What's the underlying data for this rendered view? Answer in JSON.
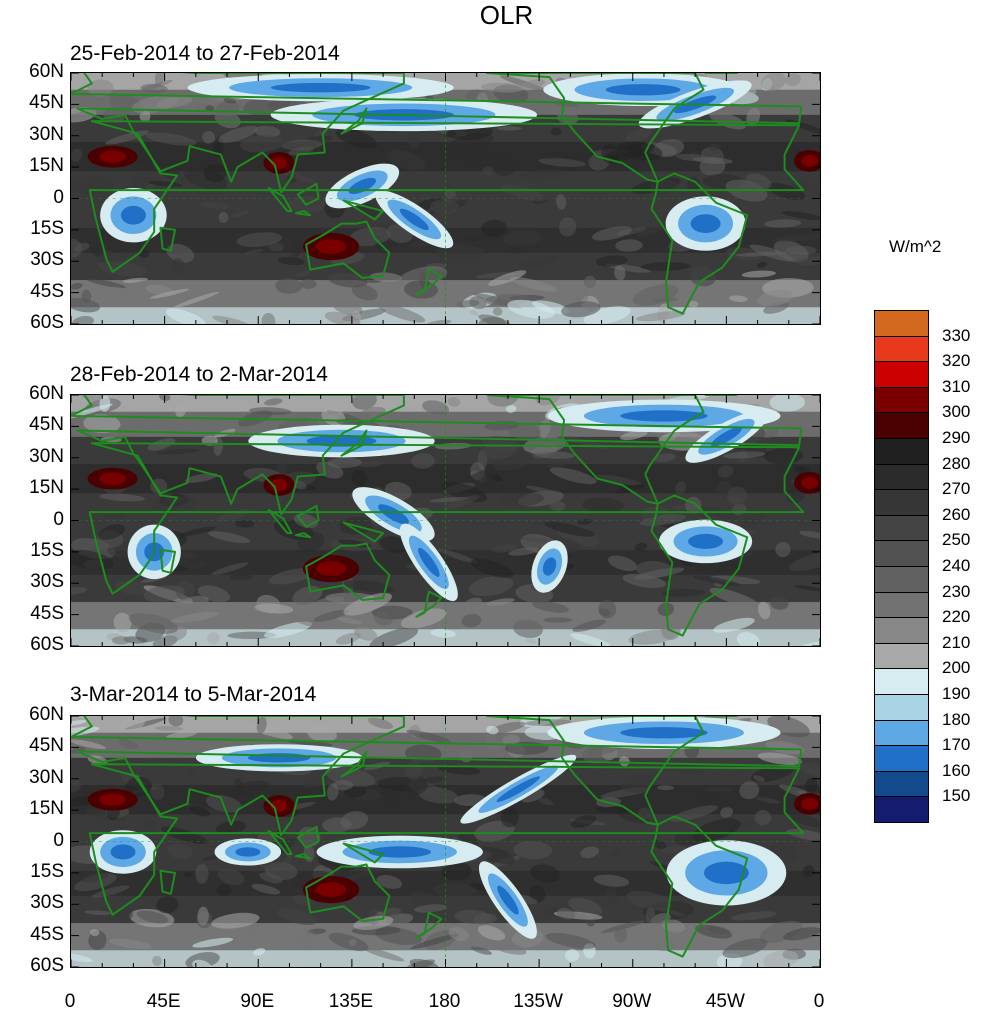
{
  "title": "OLR",
  "panels": [
    {
      "title": "25-Feb-2014 to 27-Feb-2014"
    },
    {
      "title": "28-Feb-2014 to 2-Mar-2014"
    },
    {
      "title": "3-Mar-2014 to 5-Mar-2014"
    }
  ],
  "lat_labels": [
    "60N",
    "45N",
    "30N",
    "15N",
    "0",
    "15S",
    "30S",
    "45S",
    "60S"
  ],
  "lon_labels": [
    "0",
    "45E",
    "90E",
    "135E",
    "180",
    "135W",
    "90W",
    "45W",
    "0"
  ],
  "colorbar": {
    "unit": "W/m^2",
    "levels": [
      "330",
      "320",
      "310",
      "300",
      "290",
      "280",
      "270",
      "260",
      "250",
      "240",
      "230",
      "220",
      "210",
      "200",
      "190",
      "180",
      "170",
      "160",
      "150"
    ],
    "colors": [
      "#d2691e",
      "#e8391c",
      "#cc0000",
      "#7a0000",
      "#4a0000",
      "#202020",
      "#2b2b2b",
      "#363636",
      "#444444",
      "#525252",
      "#616161",
      "#727272",
      "#878787",
      "#a9a9a9",
      "#d6ecf0",
      "#a8d4e6",
      "#5fa8e6",
      "#2070c8",
      "#124a8c",
      "#141c6e"
    ]
  },
  "map_colors": {
    "land_outline": "#1e8c1e",
    "ocean_base": "#3a3a3a"
  }
}
